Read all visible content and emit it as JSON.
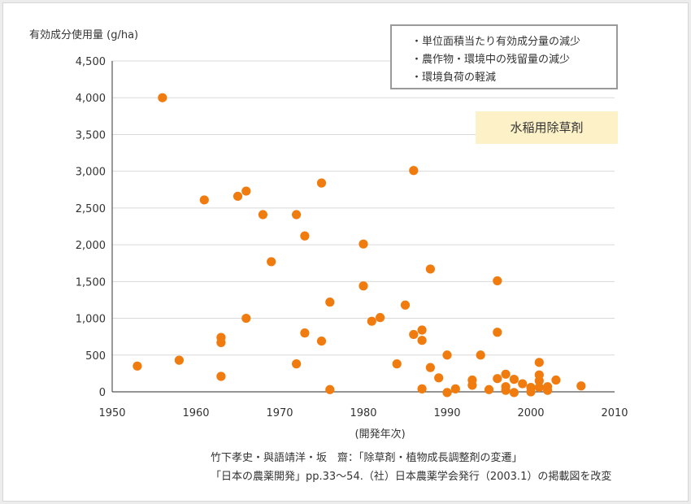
{
  "chart_data": {
    "type": "scatter",
    "ylabel": "有効成分使用量 (g/ha)",
    "xlabel": "(開発年次)",
    "xlim": [
      1950,
      2010
    ],
    "ylim": [
      0,
      4500
    ],
    "x_ticks": [
      "1950",
      "1960",
      "1970",
      "1980",
      "1990",
      "2000",
      "2010"
    ],
    "y_ticks": [
      "0",
      "500",
      "1,000",
      "1,500",
      "2,000",
      "2,500",
      "3,000",
      "3,500",
      "4,000",
      "4,500"
    ],
    "grid": "horizontal",
    "marker_color": "#f07c0f",
    "points": [
      [
        1953,
        350
      ],
      [
        1956,
        4000
      ],
      [
        1958,
        430
      ],
      [
        1961,
        2610
      ],
      [
        1963,
        740
      ],
      [
        1963,
        670
      ],
      [
        1963,
        210
      ],
      [
        1965,
        2660
      ],
      [
        1966,
        2730
      ],
      [
        1966,
        1000
      ],
      [
        1968,
        2410
      ],
      [
        1969,
        1770
      ],
      [
        1972,
        2410
      ],
      [
        1972,
        380
      ],
      [
        1973,
        2120
      ],
      [
        1973,
        800
      ],
      [
        1975,
        2840
      ],
      [
        1975,
        690
      ],
      [
        1976,
        1220
      ],
      [
        1976,
        30
      ],
      [
        1980,
        2010
      ],
      [
        1980,
        1440
      ],
      [
        1981,
        960
      ],
      [
        1982,
        1010
      ],
      [
        1984,
        380
      ],
      [
        1985,
        1180
      ],
      [
        1986,
        3010
      ],
      [
        1986,
        780
      ],
      [
        1987,
        840
      ],
      [
        1987,
        700
      ],
      [
        1987,
        40
      ],
      [
        1988,
        1670
      ],
      [
        1988,
        330
      ],
      [
        1989,
        190
      ],
      [
        1990,
        500
      ],
      [
        1990,
        -10
      ],
      [
        1991,
        40
      ],
      [
        1993,
        160
      ],
      [
        1993,
        90
      ],
      [
        1994,
        500
      ],
      [
        1995,
        30
      ],
      [
        1996,
        1510
      ],
      [
        1996,
        810
      ],
      [
        1996,
        180
      ],
      [
        1997,
        240
      ],
      [
        1997,
        70
      ],
      [
        1997,
        20
      ],
      [
        1998,
        170
      ],
      [
        1998,
        -10
      ],
      [
        1999,
        110
      ],
      [
        2000,
        60
      ],
      [
        2000,
        0
      ],
      [
        2001,
        400
      ],
      [
        2001,
        230
      ],
      [
        2001,
        150
      ],
      [
        2001,
        60
      ],
      [
        2002,
        70
      ],
      [
        2002,
        20
      ],
      [
        2003,
        160
      ],
      [
        2006,
        80
      ]
    ]
  },
  "legend": {
    "items": [
      "・単位面積当たり有効成分量の減少",
      "・農作物・環境中の残留量の減少",
      "・環境負荷の軽減"
    ]
  },
  "tag": "水稲用除草剤",
  "source": {
    "line1": "竹下孝史・與語靖洋・坂　齋：「除草剤・植物成長調整剤の変遷」",
    "line2": "「日本の農薬開発」pp.33～54.（社）日本農薬学会発行（2003.1）の掲載図を改変"
  }
}
